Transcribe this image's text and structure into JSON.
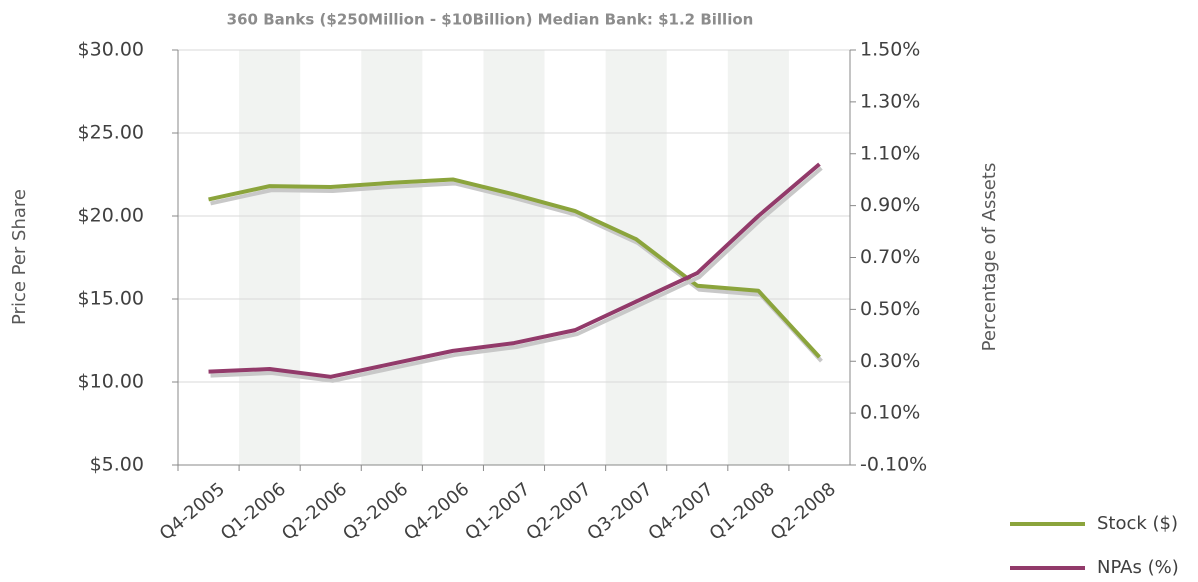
{
  "chart_data": {
    "type": "line",
    "title": "360 Banks ($250Million - $10Billion) Median Bank:  $1.2 Billion",
    "y_label": "Price Per Share",
    "y2_label": "Percentage of Assets",
    "categories": [
      "Q4-2005",
      "Q1-2006",
      "Q2-2006",
      "Q3-2006",
      "Q4-2006",
      "Q1-2007",
      "Q2-2007",
      "Q3-2007",
      "Q4-2007",
      "Q1-2008",
      "Q2-2008"
    ],
    "series": [
      {
        "name": "Stock ($)",
        "color": "#8ba43c",
        "values": [
          21.0,
          21.8,
          21.75,
          22.0,
          22.2,
          21.3,
          20.3,
          18.6,
          15.8,
          15.5,
          11.5
        ]
      },
      {
        "name": "NPAs (%)",
        "color": "#923a6a",
        "axis": "y2",
        "values": [
          0.26,
          0.27,
          0.24,
          0.29,
          0.34,
          0.37,
          0.42,
          0.53,
          0.64,
          0.86,
          1.06
        ]
      }
    ],
    "ylim": [
      5,
      30
    ],
    "yticks": [
      {
        "value": 5,
        "label": "$5.00"
      },
      {
        "value": 10,
        "label": "$10.00"
      },
      {
        "value": 15,
        "label": "$15.00"
      },
      {
        "value": 20,
        "label": "$20.00"
      },
      {
        "value": 25,
        "label": "$25.00"
      },
      {
        "value": 30,
        "label": "$30.00"
      }
    ],
    "y2lim": [
      -0.1,
      1.5
    ],
    "y2ticks": [
      {
        "value": -0.1,
        "label": "-0.10%"
      },
      {
        "value": 0.1,
        "label": "0.10%"
      },
      {
        "value": 0.3,
        "label": "0.30%"
      },
      {
        "value": 0.5,
        "label": "0.50%"
      },
      {
        "value": 0.7,
        "label": "0.70%"
      },
      {
        "value": 0.9,
        "label": "0.90%"
      },
      {
        "value": 1.1,
        "label": "1.10%"
      },
      {
        "value": 1.3,
        "label": "1.30%"
      },
      {
        "value": 1.5,
        "label": "1.50%"
      }
    ],
    "grid": true
  }
}
